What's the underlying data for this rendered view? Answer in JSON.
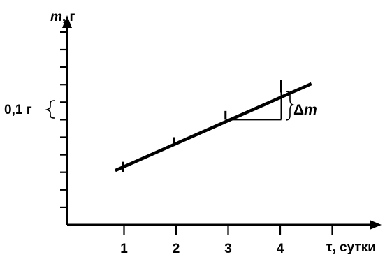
{
  "chart_data": {
    "type": "line",
    "title": "",
    "ylabel_var": "m",
    "ylabel_unit": ", г",
    "xlabel_var": "τ",
    "xlabel_unit": ", сутки",
    "xlim": [
      0,
      5
    ],
    "ylim": [
      0,
      12
    ],
    "x_ticks": [
      1,
      2,
      3,
      4
    ],
    "y_major_ticks": [
      1,
      2,
      3,
      4,
      5,
      6,
      7,
      8,
      9,
      10,
      11
    ],
    "grid": false,
    "legend": "none",
    "series": [
      {
        "x": [
          0.83,
          4.6
        ],
        "y": [
          3.1,
          8.05
        ]
      }
    ],
    "data_points": [
      {
        "x": 0.98,
        "y": [
          3.0,
          3.6
        ]
      },
      {
        "x": 1.96,
        "y": [
          4.5,
          5.0
        ]
      },
      {
        "x": 2.95,
        "y": [
          6.0,
          6.5
        ]
      },
      {
        "x": 4.02,
        "y": [
          7.55,
          8.25
        ]
      }
    ],
    "delta_triangle": {
      "x_start": 2.95,
      "x_end": 4.02,
      "y_base": 6.0,
      "y_top": 7.55
    },
    "annotations": {
      "left_brace_label": "0,1 г",
      "left_brace_range": [
        6.0,
        7.0
      ],
      "delta_symbol": "Δ",
      "delta_var": "m"
    }
  }
}
